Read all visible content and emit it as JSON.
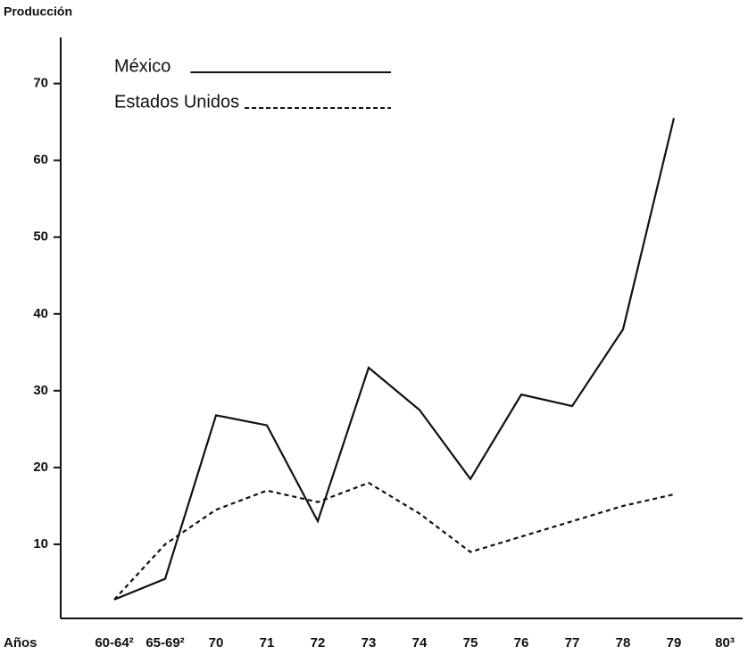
{
  "chart_data": {
    "type": "line",
    "y_label": "Producción",
    "x_label": "Años",
    "categories": [
      "60-64²",
      "65-69²",
      "70",
      "71",
      "72",
      "73",
      "74",
      "75",
      "76",
      "77",
      "78",
      "79",
      "80³"
    ],
    "series": [
      {
        "name": "México",
        "color": "#111111",
        "line_style": "solid",
        "values": [
          2.8,
          5.5,
          26.8,
          25.5,
          13,
          33,
          27.5,
          18.5,
          29.5,
          28,
          38,
          65.5,
          null
        ]
      },
      {
        "name": "Estados Unidos",
        "color": "#111111",
        "line_style": "dashed",
        "values": [
          2.8,
          10,
          14.5,
          17,
          15.5,
          18,
          14,
          9,
          11,
          13,
          15,
          16.5,
          null
        ]
      }
    ],
    "ylim": [
      0,
      76
    ],
    "yticks": [
      10,
      20,
      30,
      40,
      50,
      60,
      70
    ],
    "grid": false
  }
}
